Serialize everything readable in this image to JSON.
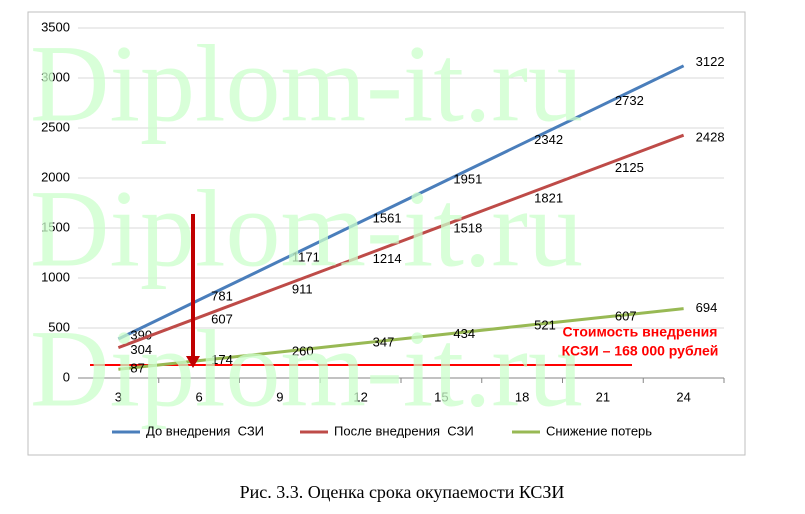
{
  "watermark": "Diplom-it.ru",
  "chart_data": {
    "type": "line",
    "categories": [
      "3",
      "6",
      "9",
      "12",
      "15",
      "18",
      "21",
      "24"
    ],
    "series": [
      {
        "name": "До внедрения  СЗИ",
        "color": "#4a7ebb",
        "values": [
          390,
          781,
          1171,
          1561,
          1951,
          2342,
          2732,
          3122
        ]
      },
      {
        "name": "После внедрения  СЗИ",
        "color": "#be4b48",
        "values": [
          304,
          607,
          911,
          1214,
          1518,
          1821,
          2125,
          2428
        ]
      },
      {
        "name": "Снижение потерь",
        "color": "#98b954",
        "values": [
          87,
          174,
          260,
          347,
          434,
          521,
          607,
          694
        ]
      }
    ],
    "ylim": [
      0,
      3500
    ],
    "yticks": [
      0,
      500,
      1000,
      1500,
      2000,
      2500,
      3000,
      3500
    ],
    "grid": true,
    "legend": "bottom",
    "annotation": [
      "Стоимость внедрения",
      "КСЗИ – 168 000 рублей"
    ],
    "annotation_line": 130,
    "caption": "Рис. 3.3. Оценка срока окупаемости КСЗИ"
  }
}
